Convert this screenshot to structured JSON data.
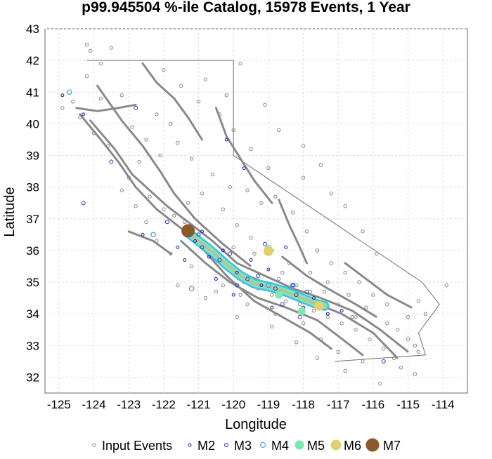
{
  "chart_data": {
    "type": "scatter",
    "title": "p99.945504 %-ile Catalog, 15978 Events, 1 Year",
    "xlabel": "Longitude",
    "ylabel": "Latitude",
    "xlim": [
      -125.4,
      -113.3
    ],
    "ylim": [
      31.5,
      43.0
    ],
    "xticks": [
      "-125",
      "-124",
      "-123",
      "-122",
      "-121",
      "-120",
      "-119",
      "-118",
      "-117",
      "-116",
      "-115",
      "-114"
    ],
    "yticks": [
      "32",
      "33",
      "34",
      "35",
      "36",
      "37",
      "38",
      "39",
      "40",
      "41",
      "42",
      "43"
    ],
    "grid": true,
    "legend_position": "bottom",
    "colors": {
      "input": "#888888",
      "M2": "#1a1aa8",
      "M3": "#3030c8",
      "M4": "#3aa0e0",
      "M5": "#7de8b0",
      "M6": "#e2d070",
      "M7": "#8b5a2b",
      "faults": "#888888",
      "ruptureOuter": "#3ec0e8",
      "ruptureMid": "#7ae8b8",
      "ruptureCore": "#c8b890",
      "border": "#707070"
    },
    "legend": [
      {
        "key": "input",
        "label": "Input Events"
      },
      {
        "key": "M2",
        "label": "M2"
      },
      {
        "key": "M3",
        "label": "M3"
      },
      {
        "key": "M4",
        "label": "M4"
      },
      {
        "key": "M5",
        "label": "M5"
      },
      {
        "key": "M6",
        "label": "M6"
      },
      {
        "key": "M7",
        "label": "M7"
      }
    ],
    "state_border": [
      [
        -124.2,
        42.0
      ],
      [
        -120.0,
        42.0
      ],
      [
        -120.0,
        39.0
      ],
      [
        -114.6,
        35.0
      ],
      [
        -114.1,
        34.3
      ],
      [
        -114.7,
        33.4
      ],
      [
        -114.5,
        32.7
      ],
      [
        -117.1,
        32.5
      ]
    ],
    "fault_traces": [
      [
        [
          -124.4,
          40.3
        ],
        [
          -123.8,
          39.5
        ],
        [
          -123.3,
          38.8
        ],
        [
          -122.8,
          38.0
        ],
        [
          -122.2,
          37.3
        ],
        [
          -121.5,
          36.7
        ],
        [
          -120.7,
          36.0
        ],
        [
          -119.8,
          35.3
        ],
        [
          -118.9,
          34.9
        ],
        [
          -117.8,
          34.4
        ],
        [
          -116.9,
          34.0
        ],
        [
          -116.0,
          33.4
        ],
        [
          -115.3,
          32.6
        ]
      ],
      [
        [
          -124.1,
          40.1
        ],
        [
          -123.4,
          39.2
        ],
        [
          -122.9,
          38.4
        ],
        [
          -122.4,
          37.9
        ],
        [
          -121.9,
          37.4
        ],
        [
          -121.3,
          36.9
        ],
        [
          -120.6,
          36.3
        ],
        [
          -119.9,
          35.6
        ],
        [
          -119.1,
          35.2
        ],
        [
          -118.3,
          34.8
        ],
        [
          -117.5,
          34.5
        ],
        [
          -116.6,
          34.1
        ],
        [
          -115.8,
          33.5
        ],
        [
          -115.0,
          32.8
        ]
      ],
      [
        [
          -123.9,
          41.2
        ],
        [
          -123.2,
          40.1
        ],
        [
          -122.6,
          39.3
        ],
        [
          -122.1,
          38.5
        ],
        [
          -121.7,
          37.8
        ],
        [
          -121.1,
          37.0
        ],
        [
          -120.3,
          36.2
        ],
        [
          -119.5,
          35.5
        ]
      ],
      [
        [
          -121.5,
          36.3
        ],
        [
          -120.8,
          35.6
        ],
        [
          -120.1,
          35.0
        ],
        [
          -119.3,
          34.5
        ],
        [
          -118.5,
          34.2
        ],
        [
          -117.6,
          33.8
        ],
        [
          -117.0,
          33.3
        ],
        [
          -116.3,
          32.7
        ]
      ],
      [
        [
          -121.0,
          36.2
        ],
        [
          -120.2,
          35.2
        ],
        [
          -119.4,
          34.4
        ],
        [
          -118.6,
          33.9
        ],
        [
          -117.8,
          33.4
        ],
        [
          -117.2,
          32.9
        ]
      ],
      [
        [
          -118.6,
          35.8
        ],
        [
          -117.9,
          35.2
        ],
        [
          -117.3,
          34.8
        ],
        [
          -116.5,
          34.3
        ],
        [
          -115.9,
          33.9
        ]
      ],
      [
        [
          -118.7,
          37.6
        ],
        [
          -118.4,
          36.8
        ],
        [
          -118.1,
          36.1
        ],
        [
          -117.9,
          35.6
        ]
      ],
      [
        [
          -120.5,
          40.5
        ],
        [
          -120.2,
          39.6
        ],
        [
          -119.8,
          38.9
        ],
        [
          -119.4,
          38.2
        ],
        [
          -118.9,
          37.5
        ]
      ],
      [
        [
          -122.6,
          41.9
        ],
        [
          -122.2,
          41.3
        ],
        [
          -121.7,
          40.8
        ],
        [
          -121.3,
          40.2
        ],
        [
          -120.9,
          39.5
        ]
      ],
      [
        [
          -124.5,
          40.5
        ],
        [
          -123.9,
          40.4
        ],
        [
          -123.3,
          40.5
        ],
        [
          -122.8,
          40.6
        ]
      ],
      [
        [
          -123.0,
          36.6
        ],
        [
          -122.3,
          36.3
        ],
        [
          -121.8,
          35.9
        ]
      ],
      [
        [
          -116.8,
          35.6
        ],
        [
          -116.2,
          35.1
        ],
        [
          -115.6,
          34.6
        ],
        [
          -114.9,
          34.2
        ]
      ]
    ],
    "rupture": [
      [
        -121.35,
        36.6
      ],
      [
        -121.0,
        36.3
      ],
      [
        -120.6,
        35.95
      ],
      [
        -120.2,
        35.55
      ],
      [
        -119.8,
        35.2
      ],
      [
        -119.4,
        34.95
      ],
      [
        -118.95,
        34.85
      ],
      [
        -118.5,
        34.7
      ],
      [
        -118.05,
        34.5
      ],
      [
        -117.65,
        34.32
      ],
      [
        -117.4,
        34.25
      ]
    ],
    "events": {
      "M2": [
        [
          -121.1,
          36.3
        ],
        [
          -120.7,
          35.8
        ],
        [
          -119.9,
          35.3
        ],
        [
          -119.2,
          34.9
        ],
        [
          -118.7,
          34.6
        ],
        [
          -118.0,
          34.2
        ],
        [
          -117.7,
          34.5
        ],
        [
          -119.5,
          35.7
        ],
        [
          -120.3,
          36.0
        ],
        [
          -121.6,
          36.1
        ],
        [
          -120.0,
          34.6
        ],
        [
          -118.3,
          34.9
        ],
        [
          -117.3,
          34.0
        ],
        [
          -119.0,
          35.4
        ],
        [
          -120.9,
          36.6
        ],
        [
          -122.6,
          36.5
        ],
        [
          -119.7,
          38.6
        ],
        [
          -120.2,
          39.5
        ],
        [
          -124.3,
          40.3
        ],
        [
          -124.9,
          40.9
        ],
        [
          -118.5,
          36.1
        ],
        [
          -116.9,
          34.1
        ],
        [
          -118.9,
          34.2
        ],
        [
          -120.5,
          35.1
        ],
        [
          -121.4,
          35.7
        ]
      ],
      "M3": [
        [
          -120.9,
          36.1
        ],
        [
          -120.4,
          35.7
        ],
        [
          -119.6,
          35.1
        ],
        [
          -118.8,
          34.8
        ],
        [
          -118.2,
          34.6
        ],
        [
          -117.5,
          34.2
        ],
        [
          -119.3,
          35.2
        ],
        [
          -120.1,
          35.9
        ],
        [
          -121.0,
          36.5
        ],
        [
          -118.6,
          34.3
        ],
        [
          -119.9,
          34.9
        ],
        [
          -117.9,
          34.7
        ],
        [
          -121.9,
          36.9
        ],
        [
          -123.5,
          38.8
        ],
        [
          -122.8,
          40.5
        ],
        [
          -119.1,
          36.2
        ],
        [
          -118.1,
          33.9
        ],
        [
          -115.7,
          32.5
        ],
        [
          -124.3,
          37.5
        ]
      ],
      "M4": [
        [
          -122.3,
          36.5
        ],
        [
          -121.2,
          34.8
        ],
        [
          -118.3,
          34.9
        ],
        [
          -119.0,
          34.9
        ],
        [
          -117.6,
          34.3
        ],
        [
          -124.7,
          41.0
        ]
      ],
      "M5": [
        [
          -118.7,
          34.6
        ],
        [
          -118.05,
          34.08
        ],
        [
          -119.0,
          36.05
        ]
      ],
      "M6": [
        [
          -119.0,
          35.98
        ],
        [
          -117.55,
          34.25
        ]
      ],
      "M7": [
        [
          -121.3,
          36.62
        ]
      ]
    },
    "input_events": [
      [
        -124.9,
        40.5
      ],
      [
        -124.6,
        40.7
      ],
      [
        -124.4,
        40.2
      ],
      [
        -124.2,
        41.5
      ],
      [
        -123.8,
        41.9
      ],
      [
        -124.1,
        42.3
      ],
      [
        -124.2,
        42.5
      ],
      [
        -123.5,
        42.4
      ],
      [
        -123.2,
        40.9
      ],
      [
        -122.9,
        39.9
      ],
      [
        -122.5,
        39.5
      ],
      [
        -122.1,
        39.0
      ],
      [
        -122.7,
        38.8
      ],
      [
        -123.0,
        38.3
      ],
      [
        -122.4,
        37.7
      ],
      [
        -122.0,
        37.3
      ],
      [
        -121.7,
        37.1
      ],
      [
        -121.4,
        36.9
      ],
      [
        -121.0,
        36.4
      ],
      [
        -120.7,
        36.1
      ],
      [
        -120.4,
        35.8
      ],
      [
        -120.1,
        35.4
      ],
      [
        -119.7,
        35.0
      ],
      [
        -119.3,
        34.8
      ],
      [
        -118.9,
        34.6
      ],
      [
        -118.5,
        34.4
      ],
      [
        -118.1,
        34.3
      ],
      [
        -117.7,
        34.1
      ],
      [
        -117.3,
        33.9
      ],
      [
        -116.9,
        33.7
      ],
      [
        -116.5,
        33.5
      ],
      [
        -116.1,
        33.2
      ],
      [
        -115.7,
        32.9
      ],
      [
        -115.4,
        32.6
      ],
      [
        -115.2,
        32.3
      ],
      [
        -116.3,
        32.5
      ],
      [
        -117.0,
        32.8
      ],
      [
        -117.5,
        33.2
      ],
      [
        -118.0,
        33.7
      ],
      [
        -118.8,
        34.0
      ],
      [
        -119.6,
        34.3
      ],
      [
        -120.5,
        34.7
      ],
      [
        -121.2,
        35.5
      ],
      [
        -121.8,
        35.9
      ],
      [
        -122.2,
        36.3
      ],
      [
        -119.2,
        37.5
      ],
      [
        -118.8,
        37.7
      ],
      [
        -118.3,
        37.2
      ],
      [
        -117.9,
        36.6
      ],
      [
        -117.6,
        36.0
      ],
      [
        -117.2,
        35.6
      ],
      [
        -116.8,
        35.3
      ],
      [
        -116.4,
        35.0
      ],
      [
        -116.0,
        34.6
      ],
      [
        -115.6,
        34.3
      ],
      [
        -115.0,
        33.9
      ],
      [
        -114.5,
        34.0
      ],
      [
        -115.9,
        35.9
      ],
      [
        -117.2,
        37.8
      ],
      [
        -118.0,
        38.3
      ],
      [
        -119.0,
        38.6
      ],
      [
        -119.5,
        39.2
      ],
      [
        -120.0,
        39.8
      ],
      [
        -120.4,
        40.3
      ],
      [
        -121.0,
        40.7
      ],
      [
        -121.5,
        41.2
      ],
      [
        -122.0,
        41.7
      ],
      [
        -120.8,
        41.4
      ],
      [
        -120.2,
        40.9
      ],
      [
        -119.8,
        41.9
      ],
      [
        -121.6,
        39.4
      ],
      [
        -121.2,
        38.9
      ],
      [
        -120.6,
        38.4
      ],
      [
        -120.9,
        37.8
      ],
      [
        -120.3,
        37.3
      ],
      [
        -119.9,
        36.8
      ],
      [
        -119.5,
        36.4
      ],
      [
        -118.9,
        36.0
      ],
      [
        -118.4,
        35.6
      ],
      [
        -117.8,
        35.3
      ],
      [
        -117.3,
        35.0
      ],
      [
        -116.7,
        34.6
      ],
      [
        -116.2,
        34.2
      ],
      [
        -115.6,
        33.7
      ],
      [
        -115.0,
        33.2
      ],
      [
        -114.7,
        32.8
      ],
      [
        -123.2,
        37.9
      ],
      [
        -122.8,
        37.4
      ],
      [
        -122.5,
        36.9
      ],
      [
        -121.6,
        34.9
      ],
      [
        -120.8,
        34.5
      ],
      [
        -119.9,
        33.9
      ],
      [
        -118.9,
        33.6
      ],
      [
        -118.2,
        33.1
      ],
      [
        -117.6,
        32.6
      ],
      [
        -116.8,
        32.2
      ],
      [
        -115.8,
        31.8
      ],
      [
        -114.8,
        32.1
      ],
      [
        -113.9,
        34.9
      ],
      [
        -114.7,
        34.4
      ],
      [
        -119.1,
        40.6
      ],
      [
        -118.7,
        39.8
      ],
      [
        -118.0,
        39.3
      ],
      [
        -117.5,
        38.7
      ],
      [
        -116.8,
        37.4
      ],
      [
        -116.3,
        36.6
      ],
      [
        -123.8,
        40.8
      ],
      [
        -124.0,
        39.7
      ],
      [
        -123.6,
        39.3
      ],
      [
        -122.2,
        40.3
      ],
      [
        -121.8,
        40.0
      ],
      [
        -121.3,
        37.5
      ],
      [
        -120.1,
        38.0
      ],
      [
        -119.6,
        37.9
      ],
      [
        -118.6,
        35.3
      ],
      [
        -117.4,
        34.7
      ],
      [
        -116.5,
        33.9
      ],
      [
        -115.3,
        33.5
      ],
      [
        -114.8,
        33.0
      ],
      [
        -120.0,
        36.1
      ],
      [
        -119.4,
        35.9
      ],
      [
        -118.7,
        35.1
      ],
      [
        -118.2,
        34.9
      ],
      [
        -117.8,
        34.7
      ],
      [
        -117.0,
        34.3
      ],
      [
        -116.6,
        33.9
      ],
      [
        -119.8,
        34.6
      ],
      [
        -120.3,
        34.9
      ]
    ]
  }
}
